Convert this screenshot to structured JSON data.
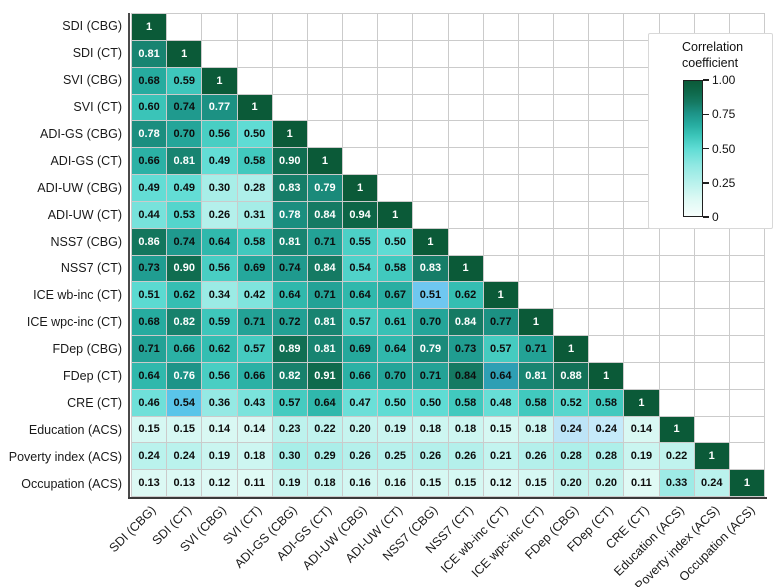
{
  "legend": {
    "title_line1": "Correlation",
    "title_line2": "coefficient",
    "ticks": [
      {
        "label": "1.00",
        "value": 1.0
      },
      {
        "label": "0.75",
        "value": 0.75
      },
      {
        "label": "0.50",
        "value": 0.5
      },
      {
        "label": "0.25",
        "value": 0.25
      },
      {
        "label": "0",
        "value": 0.0
      }
    ]
  },
  "chart_data": {
    "type": "heatmap",
    "title": "",
    "shape": "lower-triangular",
    "categories": [
      "SDI (CBG)",
      "SDI (CT)",
      "SVI (CBG)",
      "SVI (CT)",
      "ADI-GS (CBG)",
      "ADI-GS (CT)",
      "ADI-UW (CBG)",
      "ADI-UW (CT)",
      "NSS7 (CBG)",
      "NSS7 (CT)",
      "ICE wb-inc (CT)",
      "ICE wpc-inc (CT)",
      "FDep (CBG)",
      "FDep (CT)",
      "CRE (CT)",
      "Education (ACS)",
      "Poverty index (ACS)",
      "Occupation (ACS)"
    ],
    "matrix": [
      [
        1
      ],
      [
        0.81,
        1
      ],
      [
        0.68,
        0.59,
        1
      ],
      [
        0.6,
        0.74,
        0.77,
        1
      ],
      [
        0.78,
        0.7,
        0.56,
        0.5,
        1
      ],
      [
        0.66,
        0.81,
        0.49,
        0.58,
        0.9,
        1
      ],
      [
        0.49,
        0.49,
        0.3,
        0.28,
        0.83,
        0.79,
        1
      ],
      [
        0.44,
        0.53,
        0.26,
        0.31,
        0.78,
        0.84,
        0.94,
        1
      ],
      [
        0.86,
        0.74,
        0.64,
        0.58,
        0.81,
        0.71,
        0.55,
        0.5,
        1
      ],
      [
        0.73,
        0.9,
        0.56,
        0.69,
        0.74,
        0.84,
        0.54,
        0.58,
        0.83,
        1
      ],
      [
        0.51,
        0.62,
        0.34,
        0.42,
        0.64,
        0.71,
        0.64,
        0.67,
        0.51,
        0.62,
        1
      ],
      [
        0.68,
        0.82,
        0.59,
        0.71,
        0.72,
        0.81,
        0.57,
        0.61,
        0.7,
        0.84,
        0.77,
        1
      ],
      [
        0.71,
        0.66,
        0.62,
        0.57,
        0.89,
        0.81,
        0.69,
        0.64,
        0.79,
        0.73,
        0.57,
        0.71,
        1
      ],
      [
        0.64,
        0.76,
        0.56,
        0.66,
        0.82,
        0.91,
        0.66,
        0.7,
        0.71,
        0.84,
        0.64,
        0.81,
        0.88,
        1
      ],
      [
        0.46,
        0.54,
        0.36,
        0.43,
        0.57,
        0.64,
        0.47,
        0.5,
        0.5,
        0.58,
        0.48,
        0.58,
        0.52,
        0.58,
        1
      ],
      [
        0.15,
        0.15,
        0.14,
        0.14,
        0.23,
        0.22,
        0.2,
        0.19,
        0.18,
        0.18,
        0.15,
        0.18,
        0.24,
        0.24,
        0.14,
        1
      ],
      [
        0.24,
        0.24,
        0.19,
        0.18,
        0.3,
        0.29,
        0.26,
        0.25,
        0.26,
        0.26,
        0.21,
        0.26,
        0.28,
        0.28,
        0.19,
        0.22,
        1
      ],
      [
        0.13,
        0.13,
        0.12,
        0.11,
        0.19,
        0.18,
        0.16,
        0.16,
        0.15,
        0.15,
        0.12,
        0.15,
        0.2,
        0.2,
        0.11,
        0.33,
        0.24,
        1
      ]
    ],
    "colorbar": {
      "min": 0,
      "max": 1,
      "label": "Correlation coefficient",
      "position": "top-right"
    },
    "colormap_stops": [
      [
        0.0,
        "#f7fefc"
      ],
      [
        0.13,
        "#dcf9f4"
      ],
      [
        0.25,
        "#b7f1ec"
      ],
      [
        0.38,
        "#8fe8e2"
      ],
      [
        0.5,
        "#5fdcd4"
      ],
      [
        0.6,
        "#3ac4b8"
      ],
      [
        0.68,
        "#26ab9f"
      ],
      [
        0.76,
        "#1d9488"
      ],
      [
        0.84,
        "#157a63"
      ],
      [
        0.92,
        "#0e684a"
      ],
      [
        1.0,
        "#0b5a38"
      ]
    ],
    "cell_color_overrides": [
      {
        "row": 10,
        "col": 8,
        "value": 0.51,
        "color": "#6fc7f0"
      },
      {
        "row": 14,
        "col": 1,
        "value": 0.54,
        "color": "#5ac5e9"
      },
      {
        "row": 13,
        "col": 10,
        "value": 0.64,
        "color": "#2e9fb4"
      },
      {
        "row": 15,
        "col": 12,
        "value": 0.24,
        "color": "#bde4f7"
      },
      {
        "row": 15,
        "col": 13,
        "value": 0.24,
        "color": "#c5eafa"
      }
    ],
    "dark_text_cells": [
      {
        "row": 11,
        "col": 10,
        "value": 0.77
      },
      {
        "row": 13,
        "col": 9,
        "value": 0.84
      }
    ],
    "white_text_threshold": 0.76,
    "text_colors": {
      "dark": "#0d0d0d",
      "light": "#ffffff"
    },
    "grid": {
      "line_color": "#cbcbcb",
      "empty_cell_color": "#ffffff"
    }
  }
}
